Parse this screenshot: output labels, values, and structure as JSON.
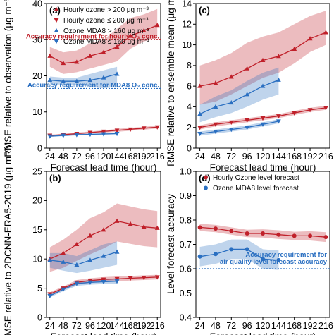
{
  "chart_data": [
    {
      "type": "line",
      "panel_label": "(a)",
      "xlabel": "Forecast lead time (hour)",
      "ylabel": "RMSE relative to observation (μg m⁻³)",
      "ylim": [
        0,
        40
      ],
      "yticks": [
        "0",
        "10",
        "20",
        "30",
        "40"
      ],
      "xlim": [
        18,
        222
      ],
      "x_ticks": [
        "24",
        "48",
        "72",
        "96",
        "120",
        "144",
        "168",
        "192",
        "216"
      ],
      "legend_position": "upper-left",
      "series": [
        {
          "name": "Hourly ozone > 200 μg m⁻³",
          "color": "#c0202a",
          "marker": "tri-up",
          "x": [
            24,
            48,
            72,
            96,
            120,
            144,
            168,
            192,
            216
          ],
          "y": [
            25.5,
            23.5,
            23.8,
            25.5,
            26.5,
            28,
            31,
            32.5,
            34
          ],
          "lower": [
            22.5,
            20.5,
            21,
            22,
            23,
            24,
            27.5,
            29.5,
            30.5
          ],
          "upper": [
            28,
            26.5,
            27,
            29,
            30,
            33,
            36,
            37,
            38.5
          ]
        },
        {
          "name": "Hourly ozone ≤ 200 μg m⁻³",
          "color": "#c0202a",
          "marker": "tri-down",
          "x": [
            24,
            48,
            72,
            96,
            120,
            144,
            168,
            192,
            216
          ],
          "y": [
            3.5,
            3.7,
            4.0,
            4.3,
            4.6,
            4.9,
            5.2,
            5.5,
            5.8
          ],
          "lower": [
            3.3,
            3.4,
            3.7,
            4.0,
            4.3,
            4.5,
            4.8,
            5.1,
            5.4
          ],
          "upper": [
            3.7,
            4.0,
            4.3,
            4.6,
            4.9,
            5.3,
            5.6,
            5.9,
            6.2
          ]
        },
        {
          "name": "Ozone MDA8 > 160 μg m⁻³",
          "color": "#2a6fc1",
          "marker": "tri-up",
          "x": [
            24,
            48,
            72,
            96,
            120,
            144
          ],
          "y": [
            18.8,
            18.5,
            18.5,
            18.8,
            19.5,
            20.5
          ],
          "lower": [
            17.8,
            17.5,
            17.5,
            17.0,
            16.5,
            17.0
          ],
          "upper": [
            19.8,
            19.5,
            19.5,
            20.5,
            21.5,
            22.5
          ]
        },
        {
          "name": "Ozone MDA8 ≤ 160 μg m⁻³",
          "color": "#2a6fc1",
          "marker": "tri-down",
          "x": [
            24,
            48,
            72,
            96,
            120,
            144
          ],
          "y": [
            3.3,
            3.5,
            3.7,
            3.8,
            3.9,
            4.0
          ],
          "lower": [
            3.1,
            3.3,
            3.5,
            3.6,
            3.7,
            3.8
          ],
          "upper": [
            3.5,
            3.7,
            3.9,
            4.0,
            4.1,
            4.2
          ]
        }
      ],
      "reference_lines": [
        {
          "y": 30,
          "color": "#c0202a",
          "text": "Accuracy requirement for hourly O₃ conc."
        },
        {
          "y": 16.5,
          "color": "#2a6fc1",
          "text": "Accuracy requirement for MDA8 O₃ conc."
        }
      ]
    },
    {
      "type": "line",
      "panel_label": "(c)",
      "xlabel": "Forecast lead time (hour)",
      "ylabel": "RMSE relative to ensemble mean (μg m⁻³)",
      "ylim": [
        0,
        14
      ],
      "yticks": [
        "0",
        "2",
        "4",
        "6",
        "8",
        "10",
        "12",
        "14"
      ],
      "xlim": [
        18,
        222
      ],
      "x_ticks": [
        "24",
        "48",
        "72",
        "96",
        "120",
        "144",
        "168",
        "192",
        "216"
      ],
      "series": [
        {
          "name": "Hourly ozone > 200 μg m⁻³",
          "color": "#c0202a",
          "marker": "tri-up",
          "x": [
            24,
            48,
            72,
            96,
            120,
            144,
            168,
            192,
            216
          ],
          "y": [
            6.0,
            6.3,
            6.9,
            7.7,
            8.5,
            8.9,
            9.6,
            10.6,
            11.2
          ],
          "lower": [
            4.2,
            4.5,
            5.2,
            6.0,
            6.8,
            7.3,
            8.2,
            9.3,
            10.0
          ],
          "upper": [
            8.0,
            8.5,
            9.2,
            10.2,
            10.8,
            11.2,
            12.0,
            12.8,
            13.3
          ]
        },
        {
          "name": "Hourly ozone ≤ 200 μg m⁻³",
          "color": "#c0202a",
          "marker": "tri-down",
          "x": [
            24,
            48,
            72,
            96,
            120,
            144,
            168,
            192,
            216
          ],
          "y": [
            2.0,
            2.3,
            2.5,
            2.7,
            2.9,
            3.1,
            3.4,
            3.7,
            3.9
          ],
          "lower": [
            1.8,
            2.1,
            2.3,
            2.5,
            2.7,
            2.9,
            3.2,
            3.5,
            3.7
          ],
          "upper": [
            2.2,
            2.5,
            2.7,
            2.9,
            3.1,
            3.3,
            3.6,
            3.9,
            4.1
          ]
        },
        {
          "name": "Ozone MDA8 > 160 μg m⁻³",
          "color": "#2a6fc1",
          "marker": "tri-up",
          "x": [
            24,
            48,
            72,
            96,
            120,
            144
          ],
          "y": [
            3.3,
            4.0,
            4.4,
            5.2,
            6.0,
            6.6
          ],
          "lower": [
            2.5,
            3.0,
            3.4,
            4.0,
            4.7,
            5.2
          ],
          "upper": [
            4.2,
            5.0,
            5.6,
            6.5,
            7.3,
            7.8
          ]
        },
        {
          "name": "Ozone MDA8 ≤ 160 μg m⁻³",
          "color": "#2a6fc1",
          "marker": "tri-down",
          "x": [
            24,
            48,
            72,
            96,
            120,
            144
          ],
          "y": [
            1.4,
            1.6,
            1.8,
            2.0,
            2.3,
            2.6
          ],
          "lower": [
            1.2,
            1.4,
            1.6,
            1.8,
            2.1,
            2.4
          ],
          "upper": [
            1.6,
            1.8,
            2.0,
            2.2,
            2.5,
            2.8
          ]
        }
      ]
    },
    {
      "type": "line",
      "panel_label": "(b)",
      "xlabel": "Forecast lead time (hour)",
      "ylabel": "RMSE relative to 2DCNN-ERA5-2019 (μg m⁻³)",
      "ylim": [
        0,
        25
      ],
      "yticks": [
        "0",
        "5",
        "10",
        "15",
        "20",
        "25"
      ],
      "xlim": [
        18,
        222
      ],
      "x_ticks": [
        "24",
        "48",
        "72",
        "96",
        "120",
        "144",
        "168",
        "192",
        "216"
      ],
      "series": [
        {
          "name": "Hourly ozone > 200 μg m⁻³",
          "color": "#c0202a",
          "marker": "tri-up",
          "x": [
            24,
            48,
            72,
            96,
            120,
            144,
            168,
            192,
            216
          ],
          "y": [
            10.0,
            11.0,
            12.5,
            14.0,
            15.0,
            16.5,
            16.0,
            15.5,
            15.3
          ],
          "lower": [
            7.8,
            8.5,
            9.7,
            10.8,
            11.8,
            13.0,
            12.6,
            12.2,
            12.0
          ],
          "upper": [
            12.0,
            13.3,
            15.0,
            17.0,
            18.0,
            19.5,
            19.0,
            18.5,
            18.2
          ]
        },
        {
          "name": "Hourly ozone ≤ 200 μg m⁻³",
          "color": "#c0202a",
          "marker": "tri-down",
          "x": [
            24,
            48,
            72,
            96,
            120,
            144,
            168,
            192,
            216
          ],
          "y": [
            4.0,
            5.0,
            6.0,
            6.3,
            6.5,
            6.6,
            6.7,
            6.8,
            6.9
          ],
          "lower": [
            3.7,
            4.7,
            5.6,
            5.9,
            6.1,
            6.2,
            6.3,
            6.4,
            6.5
          ],
          "upper": [
            4.3,
            5.3,
            6.4,
            6.7,
            6.9,
            7.0,
            7.1,
            7.2,
            7.3
          ]
        },
        {
          "name": "Ozone MDA8 > 160 μg m⁻³",
          "color": "#2a6fc1",
          "marker": "tri-up",
          "x": [
            24,
            48,
            72,
            96,
            120,
            144
          ],
          "y": [
            9.8,
            9.5,
            9.0,
            9.8,
            10.5,
            11.2
          ],
          "lower": [
            8.5,
            8.0,
            7.6,
            8.0,
            8.5,
            9.0
          ],
          "upper": [
            11.0,
            11.0,
            10.5,
            11.5,
            12.5,
            13.0
          ]
        },
        {
          "name": "Ozone MDA8 ≤ 160 μg m⁻³",
          "color": "#2a6fc1",
          "marker": "tri-down",
          "x": [
            24,
            48,
            72,
            96,
            120,
            144
          ],
          "y": [
            3.7,
            4.8,
            5.8,
            6.0,
            6.1,
            6.2
          ],
          "lower": [
            3.4,
            4.5,
            5.4,
            5.6,
            5.7,
            5.8
          ],
          "upper": [
            4.0,
            5.1,
            6.2,
            6.4,
            6.5,
            6.6
          ]
        }
      ]
    },
    {
      "type": "line",
      "panel_label": "(d)",
      "xlabel": "Forecast lead time (hour)",
      "ylabel": "Level forecast accuracy",
      "ylim": [
        0.4,
        1.0
      ],
      "yticks": [
        "0.4",
        "0.5",
        "0.6",
        "0.7",
        "0.8",
        "0.9",
        "1.0"
      ],
      "xlim": [
        18,
        222
      ],
      "x_ticks": [
        "24",
        "48",
        "72",
        "96",
        "120",
        "144",
        "168",
        "192",
        "216"
      ],
      "legend_position": "upper-left",
      "series": [
        {
          "name": "Hourly Ozone level forecast",
          "color": "#c0202a",
          "marker": "circle",
          "x": [
            24,
            48,
            72,
            96,
            120,
            144,
            168,
            192,
            216
          ],
          "y": [
            0.77,
            0.765,
            0.755,
            0.745,
            0.745,
            0.74,
            0.735,
            0.735,
            0.73
          ],
          "lower": [
            0.755,
            0.75,
            0.74,
            0.73,
            0.728,
            0.722,
            0.718,
            0.716,
            0.71
          ],
          "upper": [
            0.785,
            0.78,
            0.77,
            0.76,
            0.762,
            0.758,
            0.752,
            0.754,
            0.75
          ]
        },
        {
          "name": "Ozone MDA8 level forecast",
          "color": "#2a6fc1",
          "marker": "circle",
          "x": [
            24,
            48,
            72,
            96,
            120,
            144
          ],
          "y": [
            0.65,
            0.66,
            0.68,
            0.68,
            0.64,
            0.635
          ],
          "lower": [
            0.61,
            0.62,
            0.64,
            0.64,
            0.6,
            0.595
          ],
          "upper": [
            0.69,
            0.7,
            0.72,
            0.72,
            0.68,
            0.675
          ]
        }
      ],
      "reference_lines": [
        {
          "y": 0.6,
          "color": "#2a6fc1",
          "text": "Accuracy requirement for air quality level forecast accuracy"
        }
      ],
      "reference_text_lines": [
        "Accuracy requirement for",
        "air quality level forecast accuracy"
      ]
    }
  ]
}
